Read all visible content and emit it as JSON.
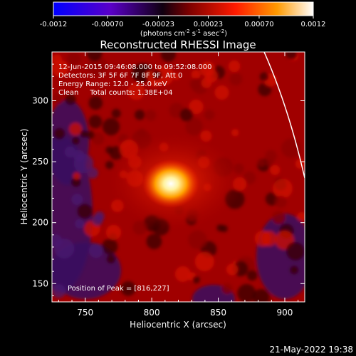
{
  "colorbar": {
    "ticks": [
      "-0.0012",
      "-0.00070",
      "-0.00023",
      "0.00023",
      "0.00070",
      "0.0012"
    ],
    "tick_values": [
      -0.0012,
      -0.0007,
      -0.00023,
      0.00023,
      0.0007,
      0.0012
    ],
    "range": [
      -0.0012,
      0.0012
    ],
    "units_text": "(photons cm",
    "units_sup1": "-2",
    "units_mid": " s",
    "units_sup2": "-1",
    "units_end": " asec",
    "units_sup3": "-2",
    "units_close": ")",
    "colors": [
      "#0000ff",
      "#5a00c8",
      "#000000",
      "#7a0000",
      "#ff0000",
      "#ff9a00",
      "#ffffff"
    ]
  },
  "chart_data": {
    "type": "heatmap",
    "title": "Reconstructed RHESSI Image",
    "xlabel": "Heliocentric X (arcsec)",
    "ylabel": "Heliocentric Y (arcsec)",
    "xlim": [
      725,
      915
    ],
    "ylim": [
      135,
      340
    ],
    "xticks": [
      750,
      800,
      850,
      900
    ],
    "yticks": [
      150,
      200,
      250,
      300
    ],
    "peak": [
      816,
      227
    ],
    "annotations": [
      "12-Jun-2015 09:46:08.000 to 09:52:08.000",
      "Detectors: 3F 5F 6F 7F 8F 9F, Att 0",
      "Energy Range: 12.0 - 25.0 keV",
      "Clean     Total counts: 1.38E+04"
    ],
    "peak_label": "Position of Peak = [816,227]"
  },
  "footer": {
    "timestamp": "21-May-2022 19:38"
  }
}
